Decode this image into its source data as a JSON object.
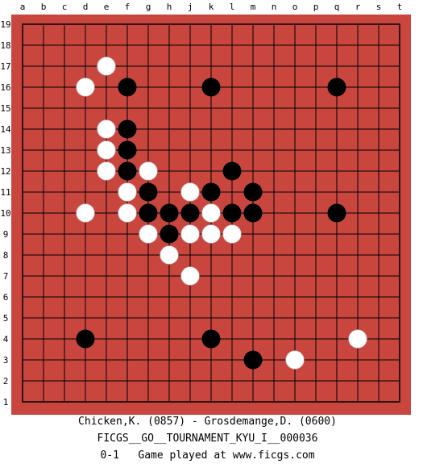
{
  "board": {
    "size": 19,
    "columns": [
      "a",
      "b",
      "c",
      "d",
      "e",
      "f",
      "g",
      "h",
      "j",
      "k",
      "l",
      "m",
      "n",
      "o",
      "p",
      "q",
      "r",
      "s",
      "t"
    ],
    "rows": [
      "19",
      "18",
      "17",
      "16",
      "15",
      "14",
      "13",
      "12",
      "11",
      "10",
      "9",
      "8",
      "7",
      "6",
      "5",
      "4",
      "3",
      "2",
      "1"
    ],
    "colors": {
      "board": "#c9463f",
      "grid": "#000000",
      "black_stone": "#000000",
      "white_stone": "#ffffff"
    },
    "black_stones": [
      "f16",
      "k16",
      "q16",
      "f14",
      "f13",
      "f12",
      "l12",
      "g11",
      "k11",
      "m11",
      "g10",
      "h10",
      "j10",
      "l10",
      "m10",
      "q10",
      "h9",
      "d4",
      "k4",
      "m3"
    ],
    "white_stones": [
      "e17",
      "d16",
      "e14",
      "e13",
      "e12",
      "g12",
      "f11",
      "j11",
      "d10",
      "f10",
      "k10",
      "g9",
      "j9",
      "k9",
      "l9",
      "h8",
      "j7",
      "r4",
      "o3"
    ]
  },
  "footer": {
    "players": "Chicken,K. (0857) - Grosdemange,D. (0600)",
    "event": "FICGS__GO__TOURNAMENT_KYU_I__000036",
    "result_line": "0-1   Game played at www.ficgs.com"
  }
}
